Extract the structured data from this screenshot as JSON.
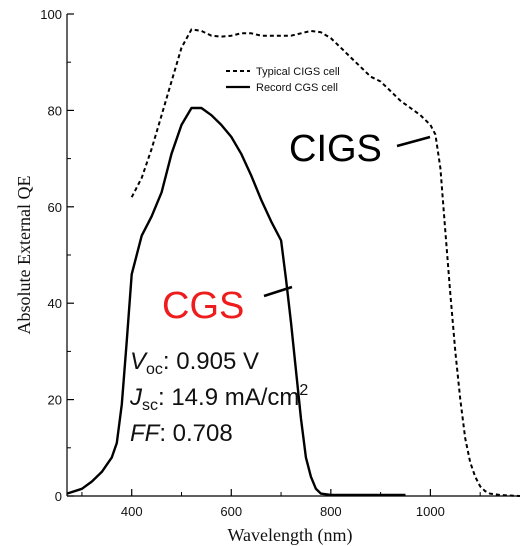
{
  "chart_data": {
    "type": "line",
    "xlabel": "Wavelength (nm)",
    "ylabel": "Absolute External QE",
    "xlim": [
      270,
      1180
    ],
    "ylim": [
      0,
      100
    ],
    "x_ticks": [
      400,
      600,
      800,
      1000
    ],
    "y_ticks": [
      0,
      20,
      40,
      60,
      80,
      100
    ],
    "grid": false,
    "legend_position": "top-right",
    "series": [
      {
        "name": "Typical CIGS cell",
        "style": "dashed",
        "color": "#000000",
        "x": [
          400,
          420,
          440,
          460,
          480,
          500,
          520,
          540,
          560,
          580,
          600,
          620,
          640,
          660,
          680,
          700,
          720,
          740,
          760,
          780,
          800,
          820,
          840,
          860,
          880,
          900,
          920,
          940,
          960,
          980,
          1000,
          1010,
          1020,
          1030,
          1040,
          1050,
          1060,
          1070,
          1080,
          1090,
          1100,
          1110,
          1120,
          1140,
          1160,
          1180
        ],
        "y": [
          62,
          66,
          72,
          79,
          86,
          93,
          96.8,
          96.5,
          95.5,
          95.3,
          95.5,
          96,
          96,
          95.5,
          95.5,
          95.5,
          95.5,
          96,
          96.5,
          96.2,
          95,
          93,
          91,
          89,
          87,
          86,
          84,
          82,
          80.5,
          79,
          77,
          75,
          68,
          55,
          42,
          30,
          20,
          12,
          7,
          4,
          2,
          1,
          0.5,
          0.2,
          0.1,
          0
        ]
      },
      {
        "name": "Record CGS cell",
        "style": "solid",
        "color": "#000000",
        "x": [
          270,
          300,
          320,
          340,
          360,
          370,
          380,
          390,
          400,
          420,
          440,
          460,
          480,
          500,
          520,
          540,
          560,
          580,
          600,
          620,
          640,
          660,
          680,
          700,
          710,
          720,
          730,
          740,
          750,
          760,
          770,
          780,
          800,
          850,
          900,
          950
        ],
        "y": [
          0.5,
          1.5,
          3,
          5,
          8,
          11,
          19,
          32,
          46,
          54,
          58,
          63,
          71,
          77,
          80.5,
          80.5,
          79,
          77,
          74.5,
          71,
          66.5,
          61.5,
          57,
          53,
          45,
          36,
          26,
          16,
          8,
          4,
          1.5,
          0.5,
          0.2,
          0.2,
          0.2,
          0.2
        ]
      }
    ],
    "annotations": {
      "cigs_label": "CIGS",
      "cgs_label": "CGS",
      "voc_symbol": "V",
      "voc_sub": "oc",
      "voc_value": ": 0.905 V",
      "jsc_symbol": "J",
      "jsc_sub": "sc",
      "jsc_value": ": 14.9 mA/cm",
      "jsc_sup": "2",
      "ff_symbol": "FF",
      "ff_value": ": 0.708"
    },
    "colors": {
      "cigs_label": "#000000",
      "cgs_label": "#ee1c1c"
    }
  }
}
